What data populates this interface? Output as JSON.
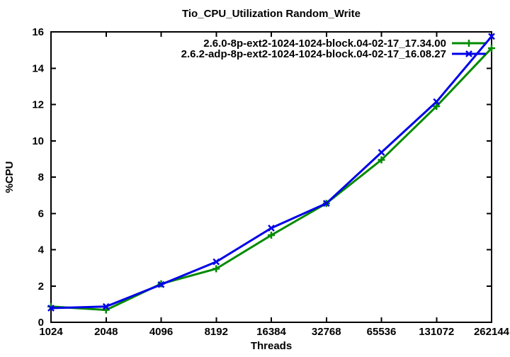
{
  "page": {
    "background": "#ffffff",
    "text_color": "#000000"
  },
  "chart_data": {
    "type": "line",
    "title": "Tio_CPU_Utilization Random_Write",
    "xlabel": "Threads",
    "ylabel": "%CPU",
    "x_scale": "log2",
    "categories": [
      "1024",
      "2048",
      "4096",
      "8192",
      "16384",
      "32768",
      "65536",
      "131072",
      "262144"
    ],
    "x_values": [
      1024,
      2048,
      4096,
      8192,
      16384,
      32768,
      65536,
      131072,
      262144
    ],
    "ylim": [
      0,
      16
    ],
    "ytick_step": 2,
    "ytick_labels": [
      "0",
      "2",
      "4",
      "6",
      "8",
      "10",
      "12",
      "14",
      "16"
    ],
    "grid": false,
    "legend_position": "top-right-inside",
    "axis_color": "#000000",
    "series": [
      {
        "name": "2.6.0-8p-ext2-1024-1024-block.04-02-17_17.34.00",
        "color": "#008a00",
        "marker": "plus",
        "values": [
          0.87,
          0.68,
          2.12,
          2.95,
          4.8,
          6.55,
          8.95,
          11.9,
          15.1
        ]
      },
      {
        "name": "2.6.2-adp-8p-ext2-1024-1024-block.04-02-17_16.08.27",
        "color": "#0000e8",
        "marker": "x",
        "values": [
          0.78,
          0.87,
          2.08,
          3.33,
          5.19,
          6.55,
          9.36,
          12.15,
          15.75
        ]
      }
    ]
  }
}
